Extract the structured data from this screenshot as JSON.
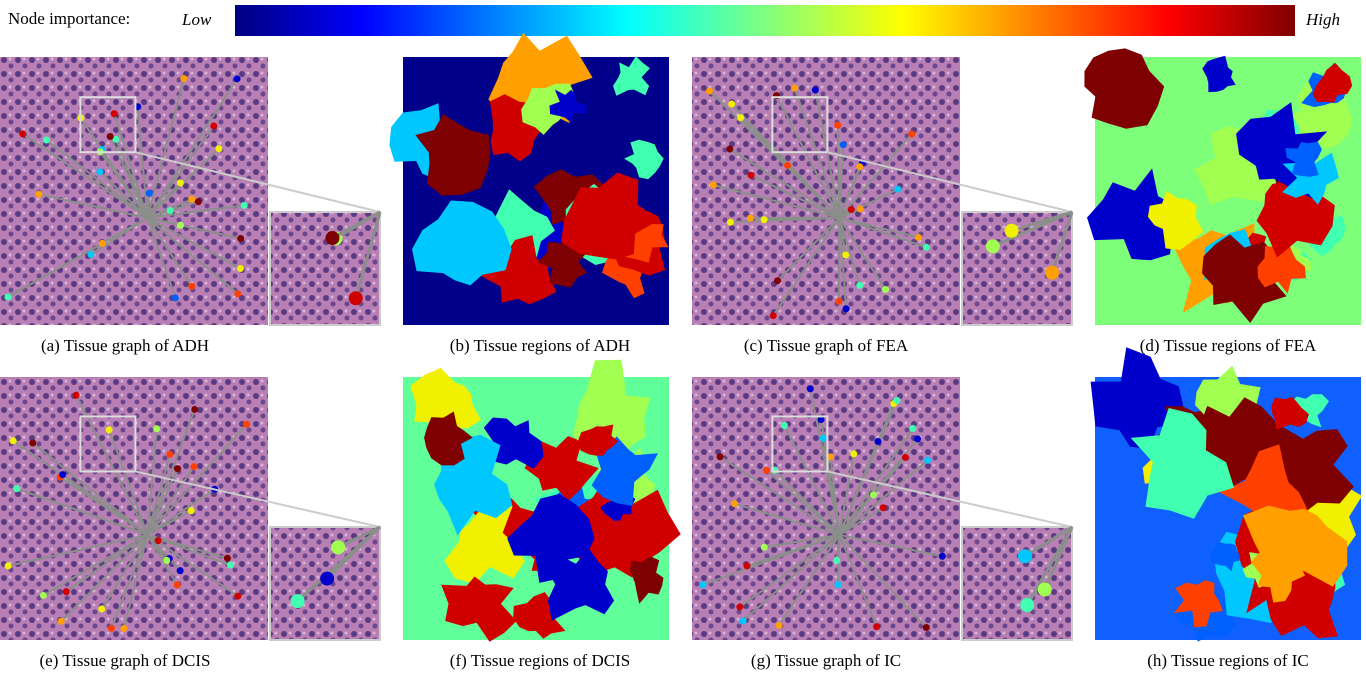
{
  "legend": {
    "label": "Node importance:",
    "low": "Low",
    "high": "High"
  },
  "panels": [
    {
      "caption": "(a) Tissue graph of ADH"
    },
    {
      "caption": "(b) Tissue regions of ADH"
    },
    {
      "caption": "(c) Tissue graph of FEA"
    },
    {
      "caption": "(d) Tissue regions of FEA"
    },
    {
      "caption": "(e) Tissue graph of DCIS"
    },
    {
      "caption": "(f) Tissue regions of DCIS"
    },
    {
      "caption": "(g) Tissue graph of IC"
    },
    {
      "caption": "(h) Tissue regions of IC"
    }
  ]
}
